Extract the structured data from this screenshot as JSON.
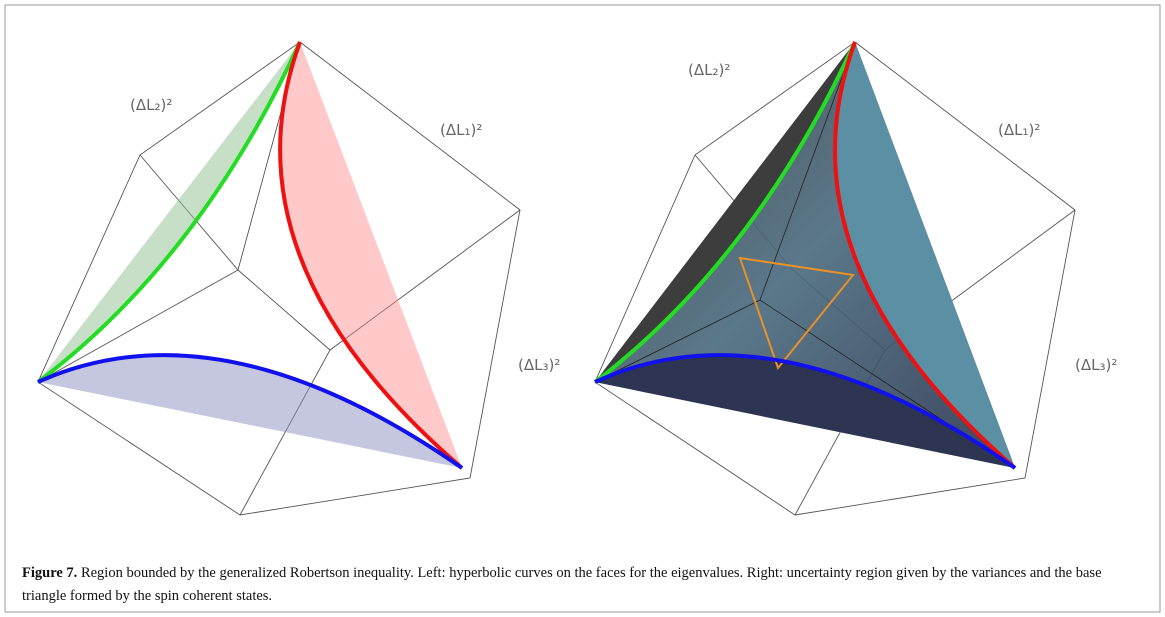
{
  "figure": {
    "panels": [
      {
        "labels": [
          "(ΔL₂)²",
          "(ΔL₁)²"
        ]
      },
      {
        "labels": [
          "(ΔL₂)²",
          "(ΔL₁)²",
          "(ΔL₃)²",
          "(ΔL₃)²"
        ]
      }
    ],
    "caption": {
      "label": "Figure 7.",
      "text": "Region bounded by the generalized Robertson inequality. Left: hyperbolic curves on the faces for the eigenvalues. Right: uncertainty region given by the variances and the base triangle formed by the spin coherent states."
    }
  }
}
